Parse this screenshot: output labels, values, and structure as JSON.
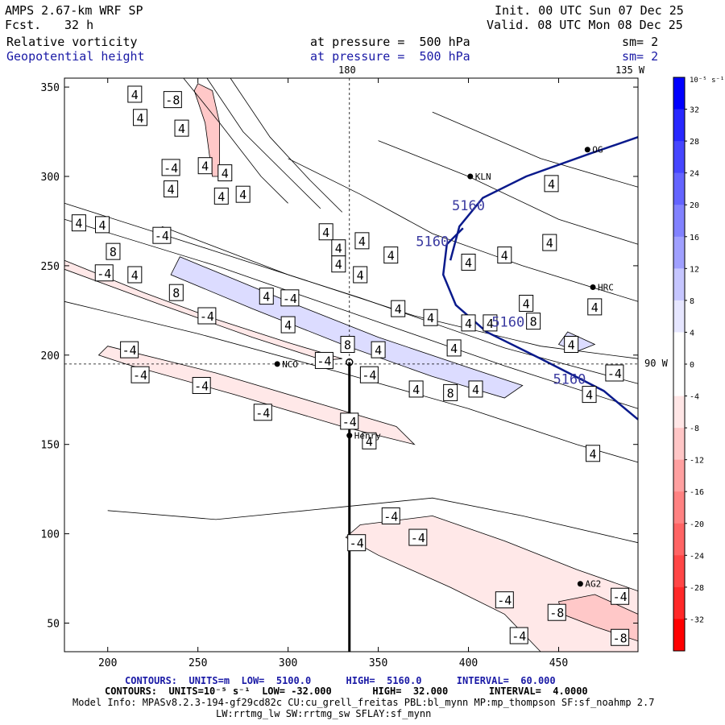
{
  "header": {
    "model": "AMPS 2.67-km WRF SP",
    "fcst_label": "Fcst.",
    "fcst_value": "32 h",
    "init": "Init. 00 UTC Sun 07 Dec 25",
    "valid": "Valid. 08 UTC Mon 08 Dec 25",
    "field1": "Relative vorticity",
    "field2": "Geopotential height",
    "press1": "at pressure =  500 hPa",
    "press2": "at pressure =  500 hPa",
    "sm1": "sm= 2",
    "sm2": "sm= 2",
    "lon_top_label": "180",
    "lon_top_right_label": "135 W",
    "lat_label": "90 W"
  },
  "colorbar": {
    "unit": "10⁻⁵ s⁻¹",
    "labels": [
      "32",
      "28",
      "24",
      "20",
      "16",
      "12",
      "8",
      "4",
      "0",
      "-4",
      "-8",
      "-12",
      "-16",
      "-20",
      "-24",
      "-28",
      "-32"
    ],
    "colors": [
      "#0000ff",
      "#2828ff",
      "#4646ff",
      "#6464ff",
      "#8282ff",
      "#a0a0ff",
      "#c6c6ff",
      "#e6e6ff",
      "#ffffff",
      "#ffffff",
      "#ffe6e6",
      "#ffc6c6",
      "#ffa0a0",
      "#ff8282",
      "#ff6464",
      "#ff4646",
      "#ff2828",
      "#ff0000"
    ]
  },
  "stations": [
    {
      "name": "KLN",
      "x": 401,
      "y": 300
    },
    {
      "name": "HRC",
      "x": 469,
      "y": 238
    },
    {
      "name": "NCO",
      "x": 294,
      "y": 195
    },
    {
      "name": "Henry",
      "x": 334,
      "y": 155
    },
    {
      "name": "AG2",
      "x": 462,
      "y": 72
    },
    {
      "name": "OG",
      "x": 466,
      "y": 315
    }
  ],
  "chart_data": {
    "type": "contour",
    "xlim": [
      176,
      494
    ],
    "ylim": [
      34,
      355
    ],
    "x_ticks": [
      200,
      250,
      300,
      350,
      400,
      450
    ],
    "y_ticks": [
      50,
      100,
      150,
      200,
      250,
      300,
      350
    ],
    "height_contours": [
      {
        "label": "5160",
        "points": [
          [
            390,
            253
          ],
          [
            395,
            272
          ],
          [
            408,
            288
          ],
          [
            432,
            300
          ],
          [
            468,
            313
          ],
          [
            494,
            322
          ]
        ]
      },
      {
        "label": "5160",
        "points": [
          [
            397,
            271
          ],
          [
            388,
            262
          ],
          [
            386,
            245
          ],
          [
            393,
            228
          ],
          [
            410,
            213
          ],
          [
            440,
            198
          ],
          [
            475,
            180
          ],
          [
            494,
            164
          ]
        ]
      }
    ],
    "height_labels": [
      {
        "text": "5160",
        "x": 400,
        "y": 281
      },
      {
        "text": "5160",
        "x": 380,
        "y": 261
      },
      {
        "text": "5160",
        "x": 422,
        "y": 216
      },
      {
        "text": "5160",
        "x": 456,
        "y": 184
      }
    ],
    "vorticity_labels": [
      {
        "text": "4",
        "x": 215,
        "y": 346
      },
      {
        "text": "-8",
        "x": 236,
        "y": 343
      },
      {
        "text": "4",
        "x": 218,
        "y": 333
      },
      {
        "text": "4",
        "x": 241,
        "y": 327
      },
      {
        "text": "-4",
        "x": 235,
        "y": 305
      },
      {
        "text": "4",
        "x": 254,
        "y": 306
      },
      {
        "text": "4",
        "x": 265,
        "y": 302
      },
      {
        "text": "4",
        "x": 235,
        "y": 293
      },
      {
        "text": "4",
        "x": 263,
        "y": 289
      },
      {
        "text": "4",
        "x": 275,
        "y": 290
      },
      {
        "text": "4",
        "x": 184,
        "y": 274
      },
      {
        "text": "4",
        "x": 197,
        "y": 273
      },
      {
        "text": "-4",
        "x": 230,
        "y": 267
      },
      {
        "text": "8",
        "x": 203,
        "y": 258
      },
      {
        "text": "-4",
        "x": 198,
        "y": 246
      },
      {
        "text": "4",
        "x": 215,
        "y": 245
      },
      {
        "text": "8",
        "x": 238,
        "y": 235
      },
      {
        "text": "-4",
        "x": 255,
        "y": 222
      },
      {
        "text": "4",
        "x": 321,
        "y": 269
      },
      {
        "text": "4",
        "x": 328,
        "y": 260
      },
      {
        "text": "4",
        "x": 341,
        "y": 264
      },
      {
        "text": "4",
        "x": 357,
        "y": 256
      },
      {
        "text": "4",
        "x": 328,
        "y": 251
      },
      {
        "text": "4",
        "x": 340,
        "y": 245
      },
      {
        "text": "4",
        "x": 288,
        "y": 233
      },
      {
        "text": "-4",
        "x": 301,
        "y": 232
      },
      {
        "text": "4",
        "x": 300,
        "y": 217
      },
      {
        "text": "4",
        "x": 361,
        "y": 226
      },
      {
        "text": "4",
        "x": 379,
        "y": 221
      },
      {
        "text": "4",
        "x": 400,
        "y": 252
      },
      {
        "text": "4",
        "x": 420,
        "y": 256
      },
      {
        "text": "4",
        "x": 445,
        "y": 263
      },
      {
        "text": "4",
        "x": 400,
        "y": 218
      },
      {
        "text": "4",
        "x": 412,
        "y": 218
      },
      {
        "text": "4",
        "x": 432,
        "y": 229
      },
      {
        "text": "8",
        "x": 436,
        "y": 219
      },
      {
        "text": "4",
        "x": 470,
        "y": 227
      },
      {
        "text": "4",
        "x": 457,
        "y": 206
      },
      {
        "text": "4",
        "x": 446,
        "y": 296
      },
      {
        "text": "8",
        "x": 333,
        "y": 206
      },
      {
        "text": "-4",
        "x": 320,
        "y": 197
      },
      {
        "text": "4",
        "x": 350,
        "y": 203
      },
      {
        "text": "4",
        "x": 392,
        "y": 204
      },
      {
        "text": "-4",
        "x": 345,
        "y": 189
      },
      {
        "text": "4",
        "x": 371,
        "y": 181
      },
      {
        "text": "8",
        "x": 390,
        "y": 179
      },
      {
        "text": "4",
        "x": 404,
        "y": 181
      },
      {
        "text": "-4",
        "x": 212,
        "y": 203
      },
      {
        "text": "-4",
        "x": 218,
        "y": 189
      },
      {
        "text": "-4",
        "x": 252,
        "y": 183
      },
      {
        "text": "-4",
        "x": 286,
        "y": 168
      },
      {
        "text": "-4",
        "x": 334,
        "y": 163
      },
      {
        "text": "4",
        "x": 345,
        "y": 152
      },
      {
        "text": "-4",
        "x": 481,
        "y": 190
      },
      {
        "text": "4",
        "x": 467,
        "y": 178
      },
      {
        "text": "4",
        "x": 469,
        "y": 145
      },
      {
        "text": "-4",
        "x": 357,
        "y": 110
      },
      {
        "text": "-4",
        "x": 372,
        "y": 98
      },
      {
        "text": "-4",
        "x": 338,
        "y": 95
      },
      {
        "text": "-4",
        "x": 484,
        "y": 65
      },
      {
        "text": "-4",
        "x": 420,
        "y": 63
      },
      {
        "text": "-8",
        "x": 449,
        "y": 56
      },
      {
        "text": "-4",
        "x": 428,
        "y": 43
      },
      {
        "text": "-8",
        "x": 484,
        "y": 42
      }
    ],
    "vorticity_bands": [
      {
        "sign": "pos",
        "level": 8,
        "points": [
          [
            240,
            255
          ],
          [
            300,
            230
          ],
          [
            350,
            210
          ],
          [
            400,
            193
          ],
          [
            430,
            183
          ],
          [
            420,
            176
          ],
          [
            380,
            188
          ],
          [
            330,
            206
          ],
          [
            280,
            226
          ],
          [
            235,
            245
          ]
        ]
      },
      {
        "sign": "neg",
        "level": -4,
        "points": [
          [
            200,
            205
          ],
          [
            260,
            190
          ],
          [
            320,
            172
          ],
          [
            360,
            160
          ],
          [
            370,
            150
          ],
          [
            330,
            160
          ],
          [
            270,
            178
          ],
          [
            210,
            195
          ],
          [
            195,
            200
          ]
        ]
      },
      {
        "sign": "neg",
        "level": -4,
        "points": [
          [
            176,
            253
          ],
          [
            220,
            235
          ],
          [
            260,
            220
          ],
          [
            300,
            207
          ],
          [
            330,
            198
          ],
          [
            320,
            197
          ],
          [
            280,
            210
          ],
          [
            230,
            228
          ],
          [
            176,
            248
          ]
        ]
      },
      {
        "sign": "neg",
        "level": -4,
        "points": [
          [
            340,
            105
          ],
          [
            380,
            110
          ],
          [
            420,
            96
          ],
          [
            460,
            80
          ],
          [
            494,
            68
          ],
          [
            494,
            34
          ],
          [
            440,
            34
          ],
          [
            420,
            55
          ],
          [
            390,
            70
          ],
          [
            350,
            88
          ],
          [
            332,
            98
          ]
        ]
      },
      {
        "sign": "neg",
        "level": -8,
        "points": [
          [
            450,
            62
          ],
          [
            470,
            66
          ],
          [
            494,
            55
          ],
          [
            494,
            40
          ],
          [
            470,
            48
          ],
          [
            452,
            55
          ]
        ]
      },
      {
        "sign": "neg",
        "level": -8,
        "points": [
          [
            250,
            352
          ],
          [
            258,
            348
          ],
          [
            262,
            330
          ],
          [
            262,
            300
          ],
          [
            258,
            300
          ],
          [
            254,
            330
          ],
          [
            248,
            348
          ]
        ]
      },
      {
        "sign": "pos",
        "level": 8,
        "points": [
          [
            455,
            213
          ],
          [
            470,
            206
          ],
          [
            460,
            202
          ],
          [
            450,
            206
          ]
        ]
      }
    ],
    "vorticity_lines": [
      [
        [
          176,
          230
        ],
        [
          250,
          212
        ],
        [
          330,
          190
        ],
        [
          400,
          170
        ],
        [
          460,
          150
        ],
        [
          494,
          140
        ]
      ],
      [
        [
          176,
          276
        ],
        [
          260,
          250
        ],
        [
          340,
          222
        ],
        [
          420,
          194
        ],
        [
          494,
          170
        ]
      ],
      [
        [
          176,
          285
        ],
        [
          260,
          258
        ],
        [
          340,
          232
        ],
        [
          420,
          204
        ],
        [
          494,
          184
        ]
      ],
      [
        [
          230,
          272
        ],
        [
          300,
          245
        ],
        [
          370,
          222
        ],
        [
          440,
          205
        ],
        [
          494,
          198
        ]
      ],
      [
        [
          300,
          310
        ],
        [
          340,
          290
        ],
        [
          380,
          268
        ],
        [
          430,
          250
        ],
        [
          494,
          230
        ]
      ],
      [
        [
          350,
          320
        ],
        [
          400,
          300
        ],
        [
          450,
          276
        ],
        [
          494,
          262
        ]
      ],
      [
        [
          380,
          336
        ],
        [
          440,
          310
        ],
        [
          494,
          294
        ]
      ],
      [
        [
          242,
          355
        ],
        [
          262,
          330
        ],
        [
          285,
          300
        ],
        [
          300,
          285
        ]
      ],
      [
        [
          255,
          355
        ],
        [
          275,
          325
        ],
        [
          300,
          300
        ],
        [
          318,
          282
        ]
      ],
      [
        [
          268,
          355
        ],
        [
          290,
          322
        ],
        [
          312,
          298
        ],
        [
          330,
          280
        ]
      ],
      [
        [
          200,
          113
        ],
        [
          260,
          108
        ],
        [
          330,
          115
        ],
        [
          380,
          120
        ],
        [
          430,
          110
        ],
        [
          494,
          95
        ]
      ]
    ],
    "cross_section": {
      "lon": 180,
      "x": 334,
      "y_start": 34,
      "y_end": 196
    },
    "ref_lat_y": 195
  },
  "footer": {
    "line1": "CONTOURS:  UNITS=m  LOW=  5100.0      HIGH=  5160.0      INTERVAL=  60.000",
    "line2": "CONTOURS:  UNITS=10⁻⁵ s⁻¹  LOW= -32.000       HIGH=  32.000       INTERVAL=  4.0000",
    "line3": "Model Info: MPASv8.2.3-194-gf29cd82c CU:cu_grell_freitas PBL:bl_mynn MP:mp_thompson SF:sf_noahmp 2.7",
    "line4": "LW:rrtmg_lw SW:rrtmg_sw SFLAY:sf_mynn"
  }
}
